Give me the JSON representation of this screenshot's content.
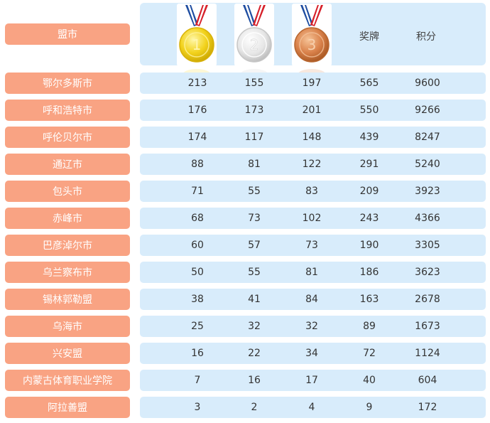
{
  "header": {
    "city_label": "盟市",
    "medals_label": "奖牌",
    "score_label": "积分",
    "gold_number": "1",
    "silver_number": "2",
    "bronze_number": "3"
  },
  "colors": {
    "city_cell": "#f9a383",
    "row_bar": "#d8ecfb",
    "gold": "#f2d21c",
    "silver": "#e6e6e6",
    "bronze": "#d9814a"
  },
  "rows": [
    {
      "city": "鄂尔多斯市",
      "gold": "213",
      "silver": "155",
      "bronze": "197",
      "medals": "565",
      "score": "9600"
    },
    {
      "city": "呼和浩特市",
      "gold": "176",
      "silver": "173",
      "bronze": "201",
      "medals": "550",
      "score": "9266"
    },
    {
      "city": "呼伦贝尔市",
      "gold": "174",
      "silver": "117",
      "bronze": "148",
      "medals": "439",
      "score": "8247"
    },
    {
      "city": "通辽市",
      "gold": "88",
      "silver": "81",
      "bronze": "122",
      "medals": "291",
      "score": "5240"
    },
    {
      "city": "包头市",
      "gold": "71",
      "silver": "55",
      "bronze": "83",
      "medals": "209",
      "score": "3923"
    },
    {
      "city": "赤峰市",
      "gold": "68",
      "silver": "73",
      "bronze": "102",
      "medals": "243",
      "score": "4366"
    },
    {
      "city": "巴彦淖尔市",
      "gold": "60",
      "silver": "57",
      "bronze": "73",
      "medals": "190",
      "score": "3305"
    },
    {
      "city": "乌兰察布市",
      "gold": "50",
      "silver": "55",
      "bronze": "81",
      "medals": "186",
      "score": "3623"
    },
    {
      "city": "锡林郭勒盟",
      "gold": "38",
      "silver": "41",
      "bronze": "84",
      "medals": "163",
      "score": "2678"
    },
    {
      "city": "乌海市",
      "gold": "25",
      "silver": "32",
      "bronze": "32",
      "medals": "89",
      "score": "1673"
    },
    {
      "city": "兴安盟",
      "gold": "16",
      "silver": "22",
      "bronze": "34",
      "medals": "72",
      "score": "1124"
    },
    {
      "city": "内蒙古体育职业学院",
      "gold": "7",
      "silver": "16",
      "bronze": "17",
      "medals": "40",
      "score": "604"
    },
    {
      "city": "阿拉善盟",
      "gold": "3",
      "silver": "2",
      "bronze": "4",
      "medals": "9",
      "score": "172"
    }
  ]
}
